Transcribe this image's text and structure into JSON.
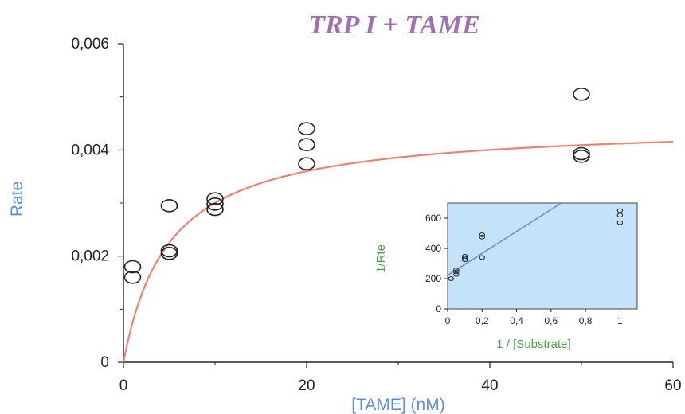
{
  "colors": {
    "title": "#a070b0",
    "main_axis_label": "#5b8fe0",
    "fit_curve": "#f08070",
    "inset_bg": "#c4e2f8",
    "inset_line": "#6a8fd8",
    "inset_axis_label": "#4aa048",
    "marker": "#222222"
  },
  "chart_data": [
    {
      "type": "scatter",
      "title": "TRP I + TAME",
      "xlabel": "[TAME] (nM)",
      "ylabel": "Rate",
      "xlim": [
        0,
        60
      ],
      "ylim": [
        0,
        0.006
      ],
      "xticks": [
        0,
        20,
        40,
        60
      ],
      "xtick_labels": [
        "0",
        "20",
        "40",
        "60"
      ],
      "yticks": [
        0,
        0.002,
        0.004,
        0.006
      ],
      "ytick_labels": [
        "0",
        "0,002",
        "0,004",
        "0,006"
      ],
      "grid": false,
      "points": [
        {
          "x": 1,
          "y": 0.0016
        },
        {
          "x": 1,
          "y": 0.0018
        },
        {
          "x": 5,
          "y": 0.00205
        },
        {
          "x": 5,
          "y": 0.0021
        },
        {
          "x": 5,
          "y": 0.00295
        },
        {
          "x": 10,
          "y": 0.00288
        },
        {
          "x": 10,
          "y": 0.00298
        },
        {
          "x": 10,
          "y": 0.00308
        },
        {
          "x": 20,
          "y": 0.00374
        },
        {
          "x": 20,
          "y": 0.0041
        },
        {
          "x": 20,
          "y": 0.0044
        },
        {
          "x": 50,
          "y": 0.00388
        },
        {
          "x": 50,
          "y": 0.00393
        },
        {
          "x": 50,
          "y": 0.00505
        }
      ],
      "fit": {
        "model": "michaelis-menten",
        "vmax": 0.0045,
        "km": 5.0
      }
    },
    {
      "type": "scatter",
      "title": "",
      "xlabel": "1 / [Substrate]",
      "ylabel": "1/Rte",
      "xlim": [
        0,
        1.1
      ],
      "ylim": [
        0,
        700
      ],
      "xticks": [
        0,
        0.2,
        0.4,
        0.6,
        0.8,
        1
      ],
      "xtick_labels": [
        "0",
        "0,2",
        "0,4",
        "0,6",
        "0,8",
        "1"
      ],
      "yticks": [
        0,
        200,
        400,
        600
      ],
      "ytick_labels": [
        "0",
        "200",
        "400",
        "600"
      ],
      "grid": false,
      "points": [
        {
          "x": 0.02,
          "y": 200
        },
        {
          "x": 0.05,
          "y": 228
        },
        {
          "x": 0.05,
          "y": 245
        },
        {
          "x": 0.05,
          "y": 258
        },
        {
          "x": 0.1,
          "y": 325
        },
        {
          "x": 0.1,
          "y": 335
        },
        {
          "x": 0.1,
          "y": 348
        },
        {
          "x": 0.2,
          "y": 340
        },
        {
          "x": 0.2,
          "y": 475
        },
        {
          "x": 0.2,
          "y": 490
        },
        {
          "x": 1,
          "y": 570
        },
        {
          "x": 1,
          "y": 620
        },
        {
          "x": 1,
          "y": 650
        }
      ],
      "fit_line": {
        "intercept": 222,
        "slope": 725
      }
    }
  ]
}
